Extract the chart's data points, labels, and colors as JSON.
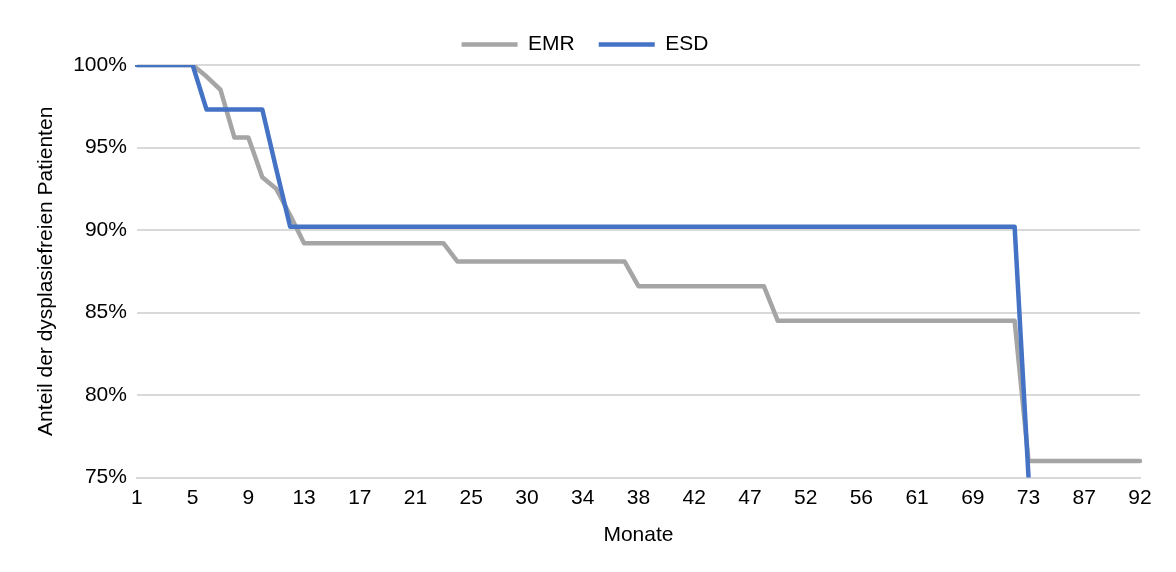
{
  "chart_data": {
    "type": "line",
    "xlabel": "Monate",
    "ylabel": "Anteil der dysplasiefreien Patienten",
    "categories": [
      "1",
      null,
      null,
      null,
      "5",
      null,
      null,
      null,
      "9",
      null,
      null,
      null,
      "13",
      null,
      null,
      null,
      "17",
      null,
      null,
      null,
      "21",
      null,
      null,
      null,
      "25",
      null,
      null,
      null,
      "30",
      null,
      null,
      null,
      "34",
      null,
      null,
      null,
      "38",
      null,
      null,
      null,
      "42",
      null,
      null,
      null,
      "47",
      null,
      null,
      null,
      "52",
      null,
      null,
      null,
      "56",
      null,
      null,
      null,
      "61",
      null,
      null,
      null,
      "69",
      null,
      null,
      null,
      "73",
      null,
      null,
      null,
      "87",
      null,
      null,
      null,
      "92"
    ],
    "series": [
      {
        "name": "EMR",
        "color": "#a5a5a5",
        "values": [
          100,
          100,
          100,
          100,
          100,
          99.3,
          98.5,
          95.6,
          95.6,
          93.2,
          92.5,
          90.9,
          89.2,
          89.2,
          89.2,
          89.2,
          89.2,
          89.2,
          89.2,
          89.2,
          89.2,
          89.2,
          89.2,
          88.1,
          88.1,
          88.1,
          88.1,
          88.1,
          88.1,
          88.1,
          88.1,
          88.1,
          88.1,
          88.1,
          88.1,
          88.1,
          86.6,
          86.6,
          86.6,
          86.6,
          86.6,
          86.6,
          86.6,
          86.6,
          86.6,
          86.6,
          84.5,
          84.5,
          84.5,
          84.5,
          84.5,
          84.5,
          84.5,
          84.5,
          84.5,
          84.5,
          84.5,
          84.5,
          84.5,
          84.5,
          84.5,
          84.5,
          84.5,
          84.5,
          76,
          76,
          76,
          76,
          76,
          76,
          76,
          76,
          76
        ]
      },
      {
        "name": "ESD",
        "color": "#4472c4",
        "values": [
          100,
          100,
          100,
          100,
          100,
          97.3,
          97.3,
          97.3,
          97.3,
          97.3,
          93.7,
          90.2,
          90.2,
          90.2,
          90.2,
          90.2,
          90.2,
          90.2,
          90.2,
          90.2,
          90.2,
          90.2,
          90.2,
          90.2,
          90.2,
          90.2,
          90.2,
          90.2,
          90.2,
          90.2,
          90.2,
          90.2,
          90.2,
          90.2,
          90.2,
          90.2,
          90.2,
          90.2,
          90.2,
          90.2,
          90.2,
          90.2,
          90.2,
          90.2,
          90.2,
          90.2,
          90.2,
          90.2,
          90.2,
          90.2,
          90.2,
          90.2,
          90.2,
          90.2,
          90.2,
          90.2,
          90.2,
          90.2,
          90.2,
          90.2,
          90.2,
          90.2,
          90.2,
          90.2,
          75,
          null,
          null,
          null,
          null,
          null,
          null,
          null,
          null
        ]
      }
    ],
    "ylim": [
      75,
      100
    ],
    "yticks": [
      {
        "value": 75,
        "label": "75%"
      },
      {
        "value": 80,
        "label": "80%"
      },
      {
        "value": 85,
        "label": "85%"
      },
      {
        "value": 90,
        "label": "90%"
      },
      {
        "value": 95,
        "label": "95%"
      },
      {
        "value": 100,
        "label": "100%"
      }
    ],
    "grid": "y",
    "legend": "top",
    "marker": "none",
    "line_style": "solid"
  }
}
